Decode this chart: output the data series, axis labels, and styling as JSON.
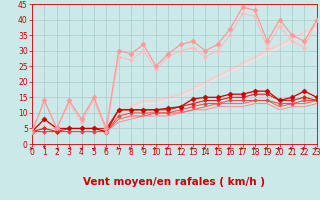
{
  "xlabel": "Vent moyen/en rafales ( km/h )",
  "xlim": [
    0,
    23
  ],
  "ylim": [
    0,
    45
  ],
  "xticks": [
    0,
    1,
    2,
    3,
    4,
    5,
    6,
    7,
    8,
    9,
    10,
    11,
    12,
    13,
    14,
    15,
    16,
    17,
    18,
    19,
    20,
    21,
    22,
    23
  ],
  "yticks": [
    0,
    5,
    10,
    15,
    20,
    25,
    30,
    35,
    40,
    45
  ],
  "bg_color": "#cce9e9",
  "grid_color": "#aacccc",
  "series": [
    {
      "x": [
        0,
        1,
        2,
        3,
        4,
        5,
        6,
        7,
        8,
        9,
        10,
        11,
        12,
        13,
        14,
        15,
        16,
        17,
        18,
        19,
        20,
        21,
        22,
        23
      ],
      "y": [
        4,
        8,
        5,
        5,
        5,
        5,
        4,
        11,
        11,
        11,
        11,
        11.5,
        12,
        14.5,
        15,
        15,
        16,
        16,
        17,
        17,
        14,
        15,
        17,
        15
      ],
      "color": "#cc0000",
      "marker": "D",
      "lw": 0.9,
      "ms": 2.5,
      "zorder": 5
    },
    {
      "x": [
        0,
        1,
        2,
        3,
        4,
        5,
        6,
        7,
        8,
        9,
        10,
        11,
        12,
        13,
        14,
        15,
        16,
        17,
        18,
        19,
        20,
        21,
        22,
        23
      ],
      "y": [
        4,
        5,
        4,
        5,
        5,
        5,
        5,
        11,
        11,
        11,
        11,
        11,
        12,
        13,
        14,
        14,
        15,
        15,
        16,
        16,
        14,
        14,
        15,
        14
      ],
      "color": "#dd2222",
      "marker": "D",
      "lw": 0.8,
      "ms": 2,
      "zorder": 4
    },
    {
      "x": [
        0,
        1,
        2,
        3,
        4,
        5,
        6,
        7,
        8,
        9,
        10,
        11,
        12,
        13,
        14,
        15,
        16,
        17,
        18,
        19,
        20,
        21,
        22,
        23
      ],
      "y": [
        4,
        4,
        4,
        4,
        4,
        4,
        4,
        9,
        10,
        10,
        10,
        10,
        11,
        12,
        13,
        13,
        14,
        14,
        14,
        14,
        13,
        13,
        14,
        14
      ],
      "color": "#ee4444",
      "marker": "D",
      "lw": 0.7,
      "ms": 1.8,
      "zorder": 3
    },
    {
      "x": [
        0,
        1,
        2,
        3,
        4,
        5,
        6,
        7,
        8,
        9,
        10,
        11,
        12,
        13,
        14,
        15,
        16,
        17,
        18,
        19,
        20,
        21,
        22,
        23
      ],
      "y": [
        4,
        4,
        4,
        4,
        4,
        4,
        4,
        8,
        9,
        9,
        10,
        10,
        10,
        11,
        12,
        13,
        13,
        13,
        14,
        14,
        12,
        13,
        13,
        14
      ],
      "color": "#ff6666",
      "marker": null,
      "lw": 0.8,
      "ms": 0,
      "zorder": 2
    },
    {
      "x": [
        0,
        1,
        2,
        3,
        4,
        5,
        6,
        7,
        8,
        9,
        10,
        11,
        12,
        13,
        14,
        15,
        16,
        17,
        18,
        19,
        20,
        21,
        22,
        23
      ],
      "y": [
        4,
        4,
        4,
        4,
        4,
        4,
        4,
        7,
        8,
        9,
        9,
        9,
        10,
        11,
        11,
        12,
        12,
        12,
        13,
        13,
        11,
        12,
        12,
        13
      ],
      "color": "#ff8888",
      "marker": null,
      "lw": 0.7,
      "ms": 0,
      "zorder": 1
    },
    {
      "x": [
        0,
        1,
        2,
        3,
        4,
        5,
        6,
        7,
        8,
        9,
        10,
        11,
        12,
        13,
        14,
        15,
        16,
        17,
        18,
        19,
        20,
        21,
        22,
        23
      ],
      "y": [
        4,
        14,
        5,
        14,
        8,
        15,
        5,
        30,
        29,
        32,
        25,
        29,
        32,
        33,
        30,
        32,
        37,
        44,
        43,
        33,
        40,
        35,
        33,
        40
      ],
      "color": "#ff9999",
      "marker": "D",
      "lw": 0.9,
      "ms": 2.5,
      "zorder": 6
    },
    {
      "x": [
        0,
        1,
        2,
        3,
        4,
        5,
        6,
        7,
        8,
        9,
        10,
        11,
        12,
        13,
        14,
        15,
        16,
        17,
        18,
        19,
        20,
        21,
        22,
        23
      ],
      "y": [
        4,
        14,
        5,
        13,
        7,
        14,
        4,
        28,
        27,
        30,
        24,
        28,
        30,
        31,
        28,
        30,
        35,
        42,
        41,
        31,
        38,
        33,
        31,
        40
      ],
      "color": "#ffbbbb",
      "marker": "D",
      "lw": 0.8,
      "ms": 2,
      "zorder": 5
    },
    {
      "x": [
        0,
        1,
        2,
        3,
        4,
        5,
        6,
        7,
        8,
        9,
        10,
        11,
        12,
        13,
        14,
        15,
        16,
        17,
        18,
        19,
        20,
        21,
        22,
        23
      ],
      "y": [
        4,
        8,
        4,
        5,
        5,
        5,
        4,
        11,
        12,
        14,
        14,
        15,
        16,
        18,
        20,
        22,
        24,
        26,
        28,
        30,
        32,
        34,
        36,
        38
      ],
      "color": "#ffcccc",
      "marker": null,
      "lw": 1.2,
      "ms": 0,
      "zorder": 1
    },
    {
      "x": [
        0,
        1,
        2,
        3,
        4,
        5,
        6,
        7,
        8,
        9,
        10,
        11,
        12,
        13,
        14,
        15,
        16,
        17,
        18,
        19,
        20,
        21,
        22,
        23
      ],
      "y": [
        4,
        7,
        4,
        5,
        5,
        5,
        4,
        10,
        11,
        13,
        13,
        14,
        15,
        17,
        19,
        21,
        23,
        25,
        27,
        29,
        31,
        33,
        35,
        37
      ],
      "color": "#ffdddd",
      "marker": null,
      "lw": 1.0,
      "ms": 0,
      "zorder": 1
    }
  ],
  "xlabel_color": "#cc0000",
  "xlabel_fontsize": 7.5,
  "tick_color": "#cc0000",
  "tick_fontsize": 5.5,
  "arrow_angles": [
    45,
    0,
    225,
    315,
    270,
    270,
    90,
    45,
    45,
    45,
    45,
    45,
    45,
    45,
    45,
    45,
    45,
    45,
    45,
    45,
    45,
    45,
    45,
    45
  ]
}
